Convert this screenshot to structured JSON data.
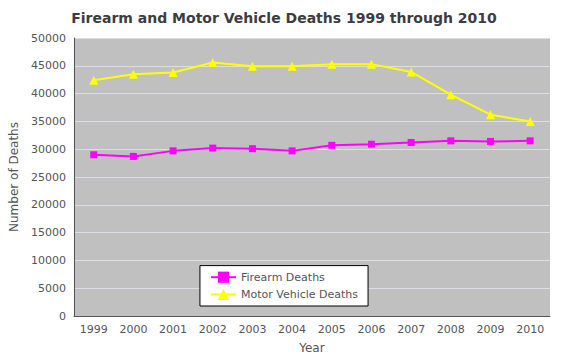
{
  "chart_data": {
    "type": "line",
    "title": "Firearm and Motor Vehicle Deaths 1999 through 2010",
    "x_label": "Year",
    "y_label": "Number of Deaths",
    "categories": [
      "1999",
      "2000",
      "2001",
      "2002",
      "2003",
      "2004",
      "2005",
      "2006",
      "2007",
      "2008",
      "2009",
      "2010"
    ],
    "series": [
      {
        "name": "Firearm Deaths",
        "color": "#FF00FF",
        "marker": "square",
        "values": [
          29000,
          28700,
          29700,
          30200,
          30100,
          29700,
          30700,
          30900,
          31200,
          31500,
          31400,
          31500
        ]
      },
      {
        "name": "Motor Vehicle Deaths",
        "color": "#FFFF00",
        "marker": "triangle",
        "values": [
          42400,
          43500,
          43800,
          45600,
          44900,
          44900,
          45300,
          45300,
          43900,
          39800,
          36200,
          35000
        ]
      }
    ],
    "ylim": [
      0,
      50000
    ],
    "yticks": [
      0,
      5000,
      10000,
      15000,
      20000,
      25000,
      30000,
      35000,
      40000,
      45000,
      50000
    ],
    "grid": true,
    "legend": "bottom"
  }
}
